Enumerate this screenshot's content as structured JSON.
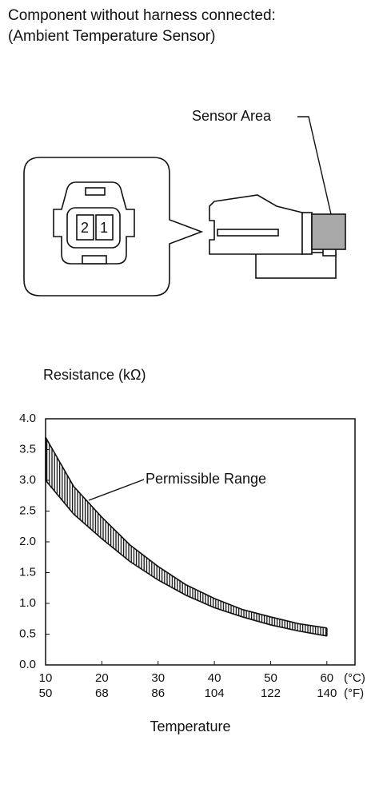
{
  "header": {
    "line1": "Component without harness connected:",
    "line2": "(Ambient Temperature Sensor)"
  },
  "diagram": {
    "sensor_area_label": "Sensor Area",
    "pins": [
      "2",
      "1"
    ]
  },
  "chart_data": {
    "type": "range-band",
    "ylabel": "Resistance (kΩ)",
    "xlabel": "Temperature",
    "annotation": "Permissible Range",
    "x_unit": "(°C)",
    "x2_unit": "(°F)",
    "x": [
      10,
      15,
      20,
      25,
      30,
      35,
      40,
      45,
      50,
      55,
      60
    ],
    "series": [
      {
        "name": "upper",
        "color": "#111111",
        "values": [
          3.7,
          2.9,
          2.4,
          1.95,
          1.6,
          1.3,
          1.08,
          0.9,
          0.78,
          0.67,
          0.6
        ]
      },
      {
        "name": "lower",
        "color": "#111111",
        "values": [
          3.0,
          2.45,
          2.05,
          1.68,
          1.38,
          1.13,
          0.93,
          0.78,
          0.65,
          0.55,
          0.47
        ]
      }
    ],
    "xlim": [
      10,
      65
    ],
    "xticks": [
      10,
      20,
      30,
      40,
      50,
      60
    ],
    "x2lim": [
      50,
      149
    ],
    "x2ticks": [
      50,
      68,
      86,
      104,
      122,
      140
    ],
    "ylim": [
      0,
      4
    ],
    "yticks": [
      {
        "value": 0,
        "label": "0.0"
      },
      0.5,
      {
        "value": 1,
        "label": "1.0"
      },
      1.5,
      {
        "value": 2,
        "label": "2.0"
      },
      2.5,
      {
        "value": 3,
        "label": "3.0"
      },
      3.5,
      {
        "value": 4,
        "label": "4.0"
      }
    ]
  }
}
